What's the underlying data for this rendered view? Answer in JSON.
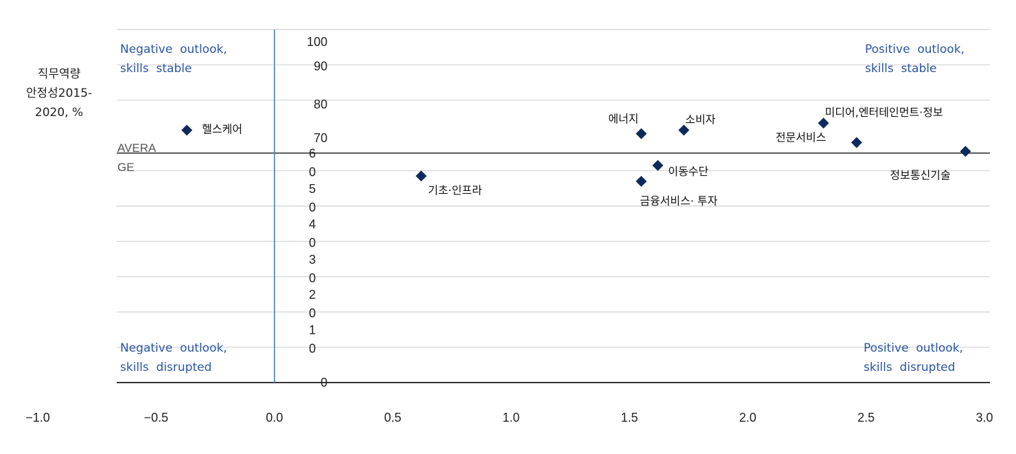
{
  "chart_data": {
    "type": "scatter",
    "title": "",
    "xlabel": "",
    "ylabel_lines": [
      "직무역량",
      "안정성2015-",
      "2020, %"
    ],
    "xlim": [
      -1.0,
      3.0
    ],
    "ylim": [
      0,
      100
    ],
    "x_ticks": [
      "−1.0",
      "−0.5",
      "0.0",
      "0.5",
      "1.0",
      "1.5",
      "2.0",
      "2.5",
      "3.0"
    ],
    "x_tick_values": [
      -1.0,
      -0.5,
      0.0,
      0.5,
      1.0,
      1.5,
      2.0,
      2.5,
      3.0
    ],
    "y_tick_labels": [
      {
        "y": 100,
        "lines": [
          "100"
        ]
      },
      {
        "y": 90,
        "lines": [
          "90"
        ]
      },
      {
        "y": 80,
        "lines": [
          "80"
        ]
      },
      {
        "y": 70,
        "lines": [
          "70"
        ]
      },
      {
        "y": 60,
        "lines": [
          "6",
          "0"
        ]
      },
      {
        "y": 50,
        "lines": [
          "5",
          "0"
        ]
      },
      {
        "y": 40,
        "lines": [
          "4",
          "0"
        ]
      },
      {
        "y": 30,
        "lines": [
          "3",
          "0"
        ]
      },
      {
        "y": 20,
        "lines": [
          "2",
          "0"
        ]
      },
      {
        "y": 10,
        "lines": [
          "1",
          "0"
        ]
      },
      {
        "y": 0,
        "lines": [
          "0"
        ]
      }
    ],
    "gridlines": [
      100,
      90,
      80,
      60,
      50,
      40,
      30,
      20,
      10
    ],
    "average": {
      "y": 65,
      "label_lines": [
        "AVERA",
        "GE"
      ]
    },
    "vertical_reference_x": 0.0,
    "points": [
      {
        "label": "헬스케어",
        "x": -0.37,
        "y": 71.5
      },
      {
        "label": "에너지",
        "x": 1.55,
        "y": 70.5
      },
      {
        "label": "소비자",
        "x": 1.73,
        "y": 71.5
      },
      {
        "label": "미디어,엔터테인먼트·정보",
        "x": 2.32,
        "y": 73.5
      },
      {
        "label": "전문서비스",
        "x": 2.46,
        "y": 68.0
      },
      {
        "label": "정보통신기술",
        "x": 2.92,
        "y": 65.5
      },
      {
        "label": "이동수단",
        "x": 1.62,
        "y": 61.5
      },
      {
        "label": "기초·인프라",
        "x": 0.62,
        "y": 58.5
      },
      {
        "label": "금융서비스· 투자",
        "x": 1.55,
        "y": 57.0
      }
    ],
    "quadrants": {
      "top_left": [
        "Negative  outlook,",
        "skills  stable"
      ],
      "top_right": [
        "Positive  outlook,",
        "skills  stable"
      ],
      "bottom_left": [
        "Negative  outlook,",
        "skills  disrupted"
      ],
      "bottom_right": [
        "Positive  outlook,",
        "skills  disrupted"
      ]
    },
    "colors": {
      "marker": "#0e2a5c",
      "quadrant_text": "#2a55a6",
      "vertical_line": "#4a7cc0",
      "gridline": "#d9d9d9",
      "average_line": "#555555"
    },
    "grid": true,
    "legend": "none"
  }
}
